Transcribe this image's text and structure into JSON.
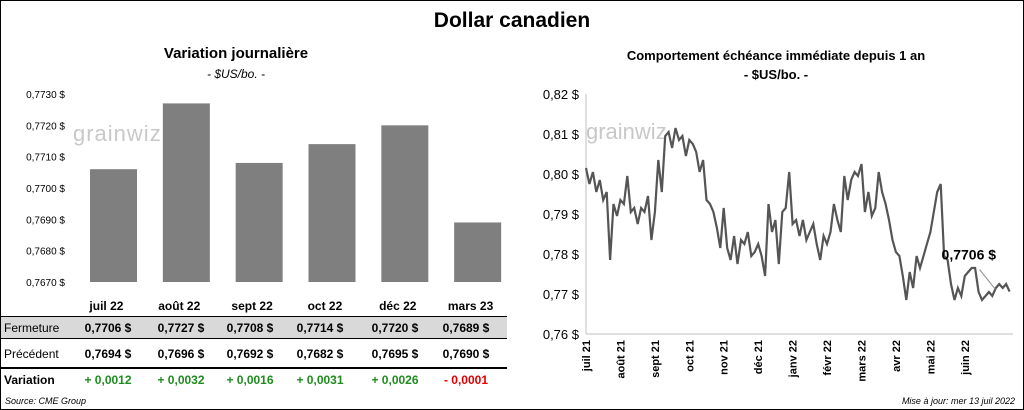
{
  "title": "Dollar canadien",
  "left_chart": {
    "title": "Variation  journalière",
    "subtitle": "- $US/bo. -",
    "watermark": "grainwiz"
  },
  "right_chart": {
    "title": "Comportement échéance immédiate depuis 1 an",
    "subtitle": "- $US/bo. -",
    "watermark": "grainwiz",
    "last_value_label": "0,7706 $"
  },
  "table": {
    "row_labels": {
      "close": "Fermeture",
      "prev": "Précédent",
      "change": "Variation"
    },
    "close": [
      "0,7706  $",
      "0,7727  $",
      "0,7708  $",
      "0,7714  $",
      "0,7720  $",
      "0,7689  $"
    ],
    "prev": [
      "0,7694  $",
      "0,7696  $",
      "0,7692  $",
      "0,7682  $",
      "0,7695  $",
      "0,7690  $"
    ],
    "change": [
      "+ 0,0012",
      "+ 0,0032",
      "+ 0,0016",
      "+ 0,0031",
      "+ 0,0026",
      "- 0,0001"
    ],
    "change_colors": [
      "#1f8c1f",
      "#1f8c1f",
      "#1f8c1f",
      "#1f8c1f",
      "#1f8c1f",
      "#e00000"
    ]
  },
  "footer": {
    "source": "Source: CME Group",
    "updated": "Mise à jour: mer 13 juil 2022"
  },
  "colors": {
    "bar": "#7f7f7f",
    "line": "#555555",
    "shade": "#d9d9d9"
  },
  "chart_data": [
    {
      "type": "bar",
      "title": "Variation  journalière",
      "subtitle": "- $US/bo. -",
      "categories": [
        "juil 22",
        "août 22",
        "sept 22",
        "oct 22",
        "déc 22",
        "mars 23"
      ],
      "values": [
        0.7706,
        0.7727,
        0.7708,
        0.7714,
        0.772,
        0.7689
      ],
      "ylim": [
        0.767,
        0.773
      ],
      "yticks": [
        0.767,
        0.768,
        0.769,
        0.77,
        0.771,
        0.772,
        0.773
      ],
      "ytick_labels": [
        "0,7670 $",
        "0,7680 $",
        "0,7690 $",
        "0,7700 $",
        "0,7710 $",
        "0,7720 $",
        "0,7730 $"
      ],
      "grid": false
    },
    {
      "type": "line",
      "title": "Comportement échéance immédiate depuis 1 an",
      "subtitle": "- $US/bo. -",
      "ylim": [
        0.76,
        0.82
      ],
      "yticks": [
        0.76,
        0.77,
        0.78,
        0.79,
        0.8,
        0.81,
        0.82
      ],
      "ytick_labels": [
        "0,76 $",
        "0,77 $",
        "0,78 $",
        "0,79 $",
        "0,80 $",
        "0,81 $",
        "0,82 $"
      ],
      "x_labels": [
        "juil 21",
        "août 21",
        "sept 21",
        "oct 21",
        "nov 21",
        "déc 21",
        "janv 22",
        "févr 22",
        "mars 22",
        "avr 22",
        "mai 22",
        "juin 22"
      ],
      "x_label_months": [
        0,
        1,
        2,
        3,
        4,
        5,
        6,
        7,
        8,
        9,
        10,
        11
      ],
      "x_range_months": [
        0,
        12.4
      ],
      "series": [
        {
          "x_months": [
            0,
            0.1,
            0.2,
            0.3,
            0.4,
            0.5,
            0.6,
            0.7,
            0.8,
            0.9,
            1.0,
            1.1,
            1.2,
            1.3,
            1.4,
            1.5,
            1.6,
            1.7,
            1.8,
            1.9,
            2.0,
            2.1,
            2.2,
            2.3,
            2.4,
            2.5,
            2.6,
            2.7,
            2.8,
            2.9,
            3.0,
            3.1,
            3.2,
            3.3,
            3.4,
            3.5,
            3.6,
            3.7,
            3.8,
            3.9,
            4.0,
            4.1,
            4.2,
            4.3,
            4.4,
            4.5,
            4.6,
            4.7,
            4.8,
            4.9,
            5.0,
            5.1,
            5.2,
            5.3,
            5.4,
            5.5,
            5.6,
            5.7,
            5.8,
            5.9,
            6.0,
            6.1,
            6.2,
            6.3,
            6.4,
            6.5,
            6.6,
            6.7,
            6.8,
            6.9,
            7.0,
            7.1,
            7.2,
            7.3,
            7.4,
            7.5,
            7.6,
            7.7,
            7.8,
            7.9,
            8.0,
            8.1,
            8.2,
            8.3,
            8.4,
            8.5,
            8.6,
            8.7,
            8.8,
            8.9,
            9.0,
            9.1,
            9.2,
            9.3,
            9.4,
            9.5,
            9.6,
            9.7,
            9.8,
            9.9,
            10.0,
            10.1,
            10.2,
            10.3,
            10.4,
            10.5,
            10.6,
            10.7,
            10.8,
            10.9,
            11.0,
            11.1,
            11.2,
            11.3,
            11.4,
            11.5,
            11.6,
            11.7,
            11.8,
            11.9,
            12.0,
            12.1,
            12.2,
            12.3
          ],
          "values": [
            0.8015,
            0.7975,
            0.8005,
            0.7955,
            0.7985,
            0.7935,
            0.7955,
            0.7785,
            0.7925,
            0.7895,
            0.7935,
            0.7925,
            0.7995,
            0.7905,
            0.7915,
            0.7875,
            0.7915,
            0.7905,
            0.7945,
            0.7835,
            0.7905,
            0.8035,
            0.7955,
            0.8095,
            0.8105,
            0.8065,
            0.8115,
            0.8085,
            0.8095,
            0.8045,
            0.8085,
            0.8075,
            0.8055,
            0.8005,
            0.8035,
            0.7935,
            0.7925,
            0.7905,
            0.7865,
            0.7815,
            0.7915,
            0.7815,
            0.7785,
            0.7845,
            0.7775,
            0.7835,
            0.7825,
            0.7855,
            0.7795,
            0.7805,
            0.7825,
            0.7795,
            0.7745,
            0.7925,
            0.7855,
            0.7885,
            0.7775,
            0.7905,
            0.7915,
            0.8005,
            0.7875,
            0.7885,
            0.7845,
            0.7885,
            0.7835,
            0.7855,
            0.7875,
            0.7825,
            0.7785,
            0.7845,
            0.7825,
            0.7855,
            0.7925,
            0.7885,
            0.7855,
            0.7995,
            0.7935,
            0.7985,
            0.8005,
            0.7995,
            0.8025,
            0.7905,
            0.7955,
            0.7895,
            0.7915,
            0.8005,
            0.7955,
            0.7925,
            0.7885,
            0.7835,
            0.7805,
            0.7795,
            0.7745,
            0.7685,
            0.7755,
            0.7715,
            0.7795,
            0.7765,
            0.7795,
            0.7825,
            0.7855,
            0.7905,
            0.7955,
            0.7975,
            0.7795,
            0.7785,
            0.7725,
            0.7685,
            0.7715,
            0.7695,
            0.7745,
            0.7755,
            0.7765,
            0.7765,
            0.7705,
            0.7685,
            0.7695,
            0.7705,
            0.7695,
            0.7715,
            0.7725,
            0.7715,
            0.7725,
            0.7706
          ],
          "last_label": "0,7706 $"
        }
      ]
    }
  ]
}
